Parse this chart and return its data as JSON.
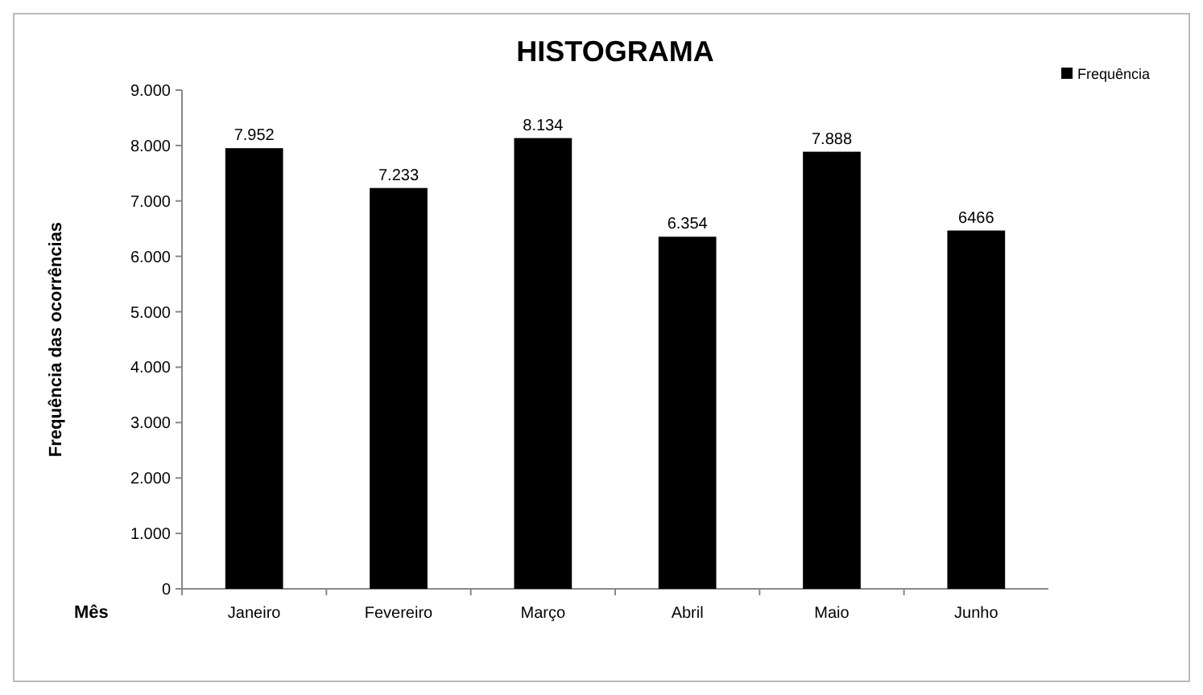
{
  "chart_data": {
    "type": "bar",
    "title": "HISTOGRAMA",
    "xlabel": "Mês",
    "ylabel": "Frequência das ocorrências",
    "categories": [
      "Janeiro",
      "Fevereiro",
      "Março",
      "Abril",
      "Maio",
      "Junho"
    ],
    "series": [
      {
        "name": "Frequência",
        "color": "#000000",
        "values": [
          7952,
          7233,
          8134,
          6354,
          7888,
          6466
        ],
        "value_labels": [
          "7.952",
          "7.233",
          "8.134",
          "6.354",
          "7.888",
          "6466"
        ]
      }
    ],
    "ylim": [
      0,
      9000
    ],
    "yticks": [
      {
        "value": 0,
        "label": "0"
      },
      {
        "value": 1000,
        "label": "1.000"
      },
      {
        "value": 2000,
        "label": "2.000"
      },
      {
        "value": 3000,
        "label": "3.000"
      },
      {
        "value": 4000,
        "label": "4.000"
      },
      {
        "value": 5000,
        "label": "5.000"
      },
      {
        "value": 6000,
        "label": "6.000"
      },
      {
        "value": 7000,
        "label": "7.000"
      },
      {
        "value": 8000,
        "label": "8.000"
      },
      {
        "value": 9000,
        "label": "9.000"
      }
    ],
    "grid": false,
    "legend": "top right"
  }
}
